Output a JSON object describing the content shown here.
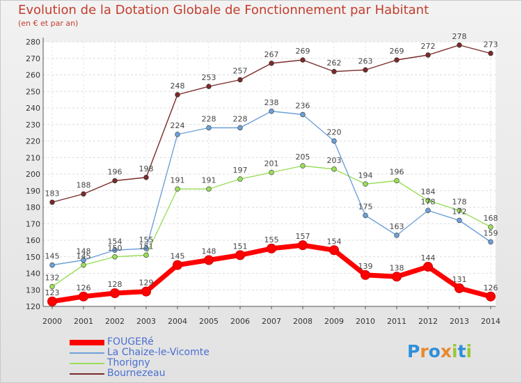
{
  "chart_data": {
    "type": "line",
    "title": "Evolution de la Dotation Globale de Fonctionnement par Habitant",
    "subtitle": "(en € et par an)",
    "x": [
      "2000",
      "2001",
      "2002",
      "2003",
      "2004",
      "2005",
      "2006",
      "2007",
      "2008",
      "2009",
      "2010",
      "2011",
      "2012",
      "2013",
      "2014"
    ],
    "ylim": [
      120,
      280
    ],
    "yticks": [
      120,
      130,
      140,
      150,
      160,
      170,
      180,
      190,
      200,
      210,
      220,
      230,
      240,
      250,
      260,
      270,
      280
    ],
    "grid": true,
    "legend_position": "bottom-left",
    "series": [
      {
        "name": "FOUGERé",
        "color": "#ff0000",
        "values": [
          123,
          126,
          128,
          129,
          145,
          148,
          151,
          155,
          157,
          154,
          139,
          138,
          144,
          131,
          126
        ]
      },
      {
        "name": "La Chaize-le-Vicomte",
        "color": "#6da0d8",
        "values": [
          145,
          148,
          154,
          155,
          224,
          228,
          228,
          238,
          236,
          220,
          175,
          163,
          178,
          172,
          159
        ]
      },
      {
        "name": "Thorigny",
        "color": "#9ade5a",
        "values": [
          132,
          145,
          150,
          151,
          191,
          191,
          197,
          201,
          205,
          203,
          194,
          196,
          184,
          178,
          168
        ]
      },
      {
        "name": "Bournezeau",
        "color": "#7a2a2a",
        "values": [
          183,
          188,
          196,
          198,
          248,
          253,
          257,
          267,
          269,
          262,
          263,
          269,
          272,
          278,
          273
        ]
      }
    ]
  },
  "legend": {
    "items": [
      {
        "label": "FOUGERé"
      },
      {
        "label": "La Chaize-le-Vicomte"
      },
      {
        "label": "Thorigny"
      },
      {
        "label": "Bournezeau"
      }
    ]
  },
  "logo": {
    "text": "Proxiti"
  }
}
